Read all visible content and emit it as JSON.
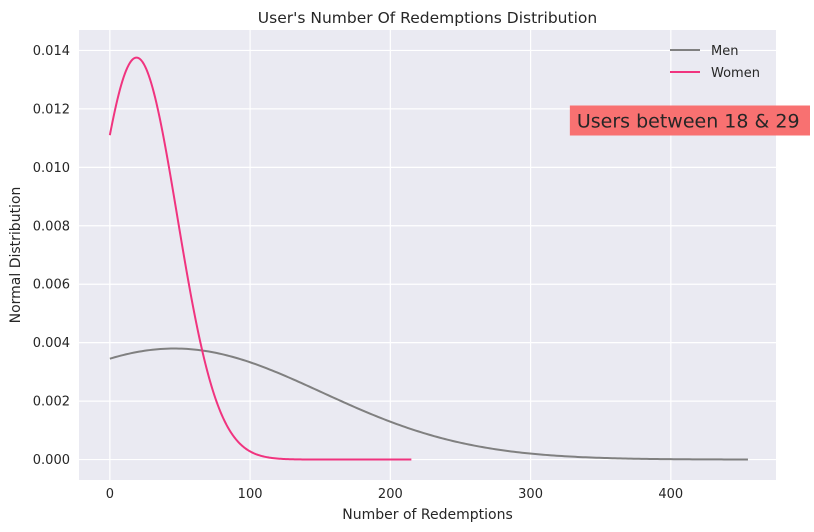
{
  "chart_data": {
    "type": "line",
    "title": "User's Number Of Redemptions Distribution",
    "xlabel": "Number of Redemptions",
    "ylabel": "Normal Distribution",
    "xlim": [
      -22,
      475
    ],
    "ylim": [
      -0.0007,
      0.0147
    ],
    "x_ticks": [
      0,
      100,
      200,
      300,
      400
    ],
    "x_tick_labels": [
      "0",
      "100",
      "200",
      "300",
      "400"
    ],
    "y_ticks": [
      0.0,
      0.002,
      0.004,
      0.006,
      0.008,
      0.01,
      0.012,
      0.014
    ],
    "y_tick_labels": [
      "0.000",
      "0.002",
      "0.004",
      "0.006",
      "0.008",
      "0.010",
      "0.012",
      "0.014"
    ],
    "grid": true,
    "legend_position": "top-right",
    "series": [
      {
        "name": "Men",
        "color": "#808080",
        "distribution": "normal",
        "mean": 46,
        "std": 105,
        "x_range": [
          0,
          455
        ]
      },
      {
        "name": "Women",
        "color": "#f0347f",
        "distribution": "normal",
        "mean": 19,
        "std": 29,
        "x_range": [
          0,
          215
        ]
      }
    ],
    "annotation": {
      "text": "Users between 18 & 29",
      "background": "#f87171",
      "anchor_x": 333,
      "anchor_y": 0.0115
    }
  }
}
